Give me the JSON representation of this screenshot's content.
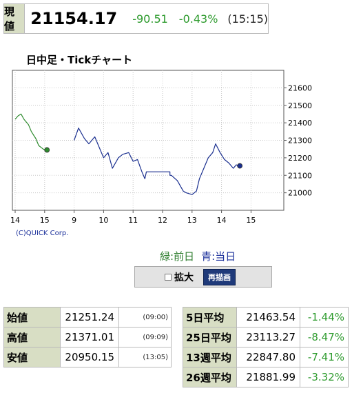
{
  "quote": {
    "label": "現値",
    "price": "21154.17",
    "change": "-90.51",
    "change_pct": "-0.43%",
    "time": "(15:15)"
  },
  "chart_title": "日中足・Tickチャート",
  "chart_data": {
    "type": "line",
    "ylim": [
      20900,
      21700
    ],
    "y_ticks": [
      21000,
      21100,
      21200,
      21300,
      21400,
      21500,
      21600
    ],
    "x_tick_labels": [
      "14",
      "15",
      "9",
      "10",
      "11",
      "12",
      "13",
      "14",
      "15"
    ],
    "grid": true,
    "series": [
      {
        "name": "前日",
        "color": "#2e8b2e",
        "points": [
          [
            0,
            21420
          ],
          [
            0.1,
            21440
          ],
          [
            0.2,
            21450
          ],
          [
            0.3,
            21420
          ],
          [
            0.45,
            21390
          ],
          [
            0.55,
            21350
          ],
          [
            0.7,
            21310
          ],
          [
            0.8,
            21270
          ],
          [
            0.95,
            21250
          ],
          [
            1.05,
            21240
          ]
        ]
      },
      {
        "name": "当日",
        "color": "#1a2f8f",
        "points": [
          [
            2.0,
            21300
          ],
          [
            2.15,
            21370
          ],
          [
            2.35,
            21310
          ],
          [
            2.5,
            21280
          ],
          [
            2.7,
            21320
          ],
          [
            2.85,
            21260
          ],
          [
            3.0,
            21200
          ],
          [
            3.15,
            21230
          ],
          [
            3.3,
            21140
          ],
          [
            3.5,
            21200
          ],
          [
            3.65,
            21220
          ],
          [
            3.85,
            21230
          ],
          [
            4.0,
            21180
          ],
          [
            4.15,
            21190
          ],
          [
            4.3,
            21120
          ],
          [
            4.4,
            21080
          ],
          [
            4.45,
            21120
          ],
          [
            4.6,
            21120
          ],
          [
            5.25,
            21120
          ],
          [
            5.25,
            21100
          ],
          [
            5.3,
            21100
          ],
          [
            5.5,
            21070
          ],
          [
            5.7,
            21010
          ],
          [
            5.8,
            21000
          ],
          [
            6.0,
            20990
          ],
          [
            6.15,
            21010
          ],
          [
            6.25,
            21080
          ],
          [
            6.4,
            21140
          ],
          [
            6.55,
            21200
          ],
          [
            6.7,
            21230
          ],
          [
            6.8,
            21280
          ],
          [
            6.95,
            21230
          ],
          [
            7.1,
            21190
          ],
          [
            7.25,
            21170
          ],
          [
            7.4,
            21140
          ],
          [
            7.5,
            21160
          ],
          [
            7.6,
            21150
          ]
        ]
      }
    ],
    "markers": [
      {
        "series": "前日",
        "x": 1.08,
        "y": 21245
      },
      {
        "series": "当日",
        "x": 7.62,
        "y": 21154
      }
    ]
  },
  "credit": "(C)QUICK Corp.",
  "legend": {
    "prev": "緑:前日",
    "today": "青:当日"
  },
  "controls": {
    "zoom_label": "拡大",
    "redraw_label": "再描画"
  },
  "left_stats": [
    {
      "label": "始値",
      "value": "21251.24",
      "time": "(09:00)"
    },
    {
      "label": "高値",
      "value": "21371.01",
      "time": "(09:09)"
    },
    {
      "label": "安値",
      "value": "20950.15",
      "time": "(13:05)"
    }
  ],
  "right_stats": [
    {
      "label": "5日平均",
      "value": "21463.54",
      "pct": "-1.44%"
    },
    {
      "label": "25日平均",
      "value": "23113.27",
      "pct": "-8.47%"
    },
    {
      "label": "13週平均",
      "value": "22847.80",
      "pct": "-7.41%"
    },
    {
      "label": "26週平均",
      "value": "21881.99",
      "pct": "-3.32%"
    }
  ]
}
